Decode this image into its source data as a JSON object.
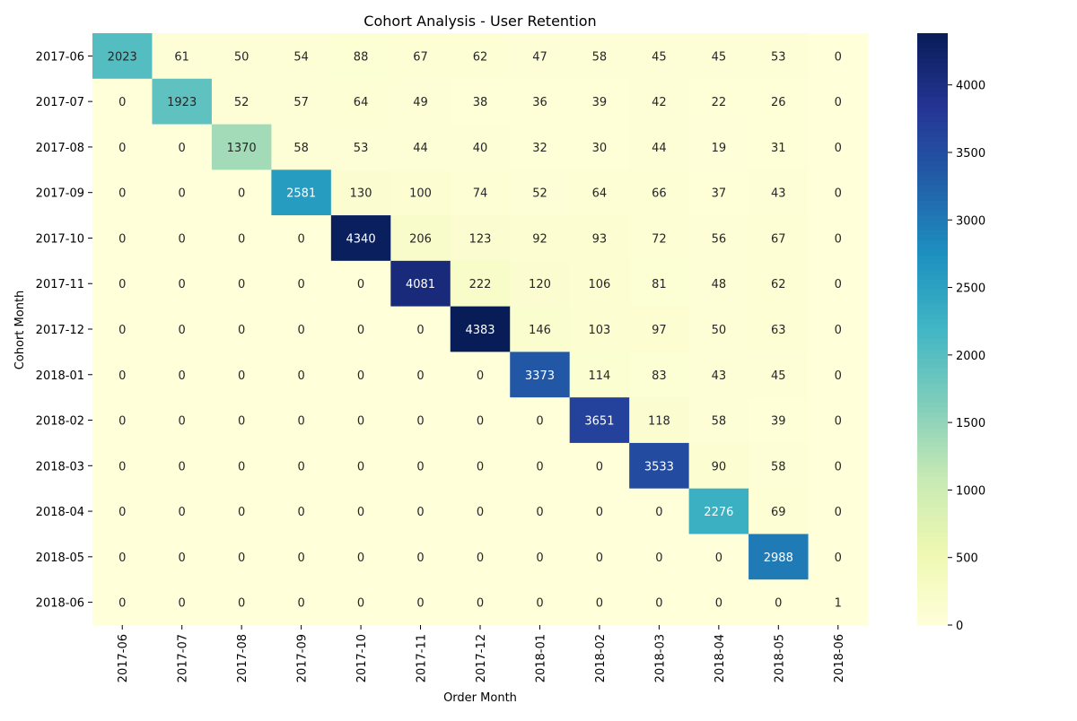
{
  "chart_data": {
    "type": "heatmap",
    "title": "Cohort Analysis - User Retention",
    "xlabel": "Order Month",
    "ylabel": "Cohort Month",
    "x_categories": [
      "2017-06",
      "2017-07",
      "2017-08",
      "2017-09",
      "2017-10",
      "2017-11",
      "2017-12",
      "2018-01",
      "2018-02",
      "2018-03",
      "2018-04",
      "2018-05",
      "2018-06"
    ],
    "y_categories": [
      "2017-06",
      "2017-07",
      "2017-08",
      "2017-09",
      "2017-10",
      "2017-11",
      "2017-12",
      "2018-01",
      "2018-02",
      "2018-03",
      "2018-04",
      "2018-05",
      "2018-06"
    ],
    "values": [
      [
        2023,
        61,
        50,
        54,
        88,
        67,
        62,
        47,
        58,
        45,
        45,
        53,
        0
      ],
      [
        0,
        1923,
        52,
        57,
        64,
        49,
        38,
        36,
        39,
        42,
        22,
        26,
        0
      ],
      [
        0,
        0,
        1370,
        58,
        53,
        44,
        40,
        32,
        30,
        44,
        19,
        31,
        0
      ],
      [
        0,
        0,
        0,
        2581,
        130,
        100,
        74,
        52,
        64,
        66,
        37,
        43,
        0
      ],
      [
        0,
        0,
        0,
        0,
        4340,
        206,
        123,
        92,
        93,
        72,
        56,
        67,
        0
      ],
      [
        0,
        0,
        0,
        0,
        0,
        4081,
        222,
        120,
        106,
        81,
        48,
        62,
        0
      ],
      [
        0,
        0,
        0,
        0,
        0,
        0,
        4383,
        146,
        103,
        97,
        50,
        63,
        0
      ],
      [
        0,
        0,
        0,
        0,
        0,
        0,
        0,
        3373,
        114,
        83,
        43,
        45,
        0
      ],
      [
        0,
        0,
        0,
        0,
        0,
        0,
        0,
        0,
        3651,
        118,
        58,
        39,
        0
      ],
      [
        0,
        0,
        0,
        0,
        0,
        0,
        0,
        0,
        0,
        3533,
        90,
        58,
        0
      ],
      [
        0,
        0,
        0,
        0,
        0,
        0,
        0,
        0,
        0,
        0,
        2276,
        69,
        0
      ],
      [
        0,
        0,
        0,
        0,
        0,
        0,
        0,
        0,
        0,
        0,
        0,
        2988,
        0
      ],
      [
        0,
        0,
        0,
        0,
        0,
        0,
        0,
        0,
        0,
        0,
        0,
        0,
        1
      ]
    ],
    "colorbar": {
      "colormap": "YlGnBu",
      "min": 0,
      "max": 4383,
      "ticks": [
        0,
        500,
        1000,
        1500,
        2000,
        2500,
        3000,
        3500,
        4000
      ]
    },
    "grid": false,
    "legend": "colorbar-right"
  }
}
